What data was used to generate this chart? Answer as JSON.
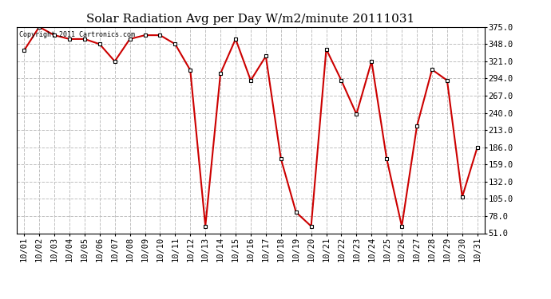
{
  "title": "Solar Radiation Avg per Day W/m2/minute 20111031",
  "copyright_text": "Copyright 2011 Cartronics.com",
  "dates": [
    "10/01",
    "10/02",
    "10/03",
    "10/04",
    "10/05",
    "10/06",
    "10/07",
    "10/08",
    "10/09",
    "10/10",
    "10/11",
    "10/12",
    "10/13",
    "10/14",
    "10/15",
    "10/16",
    "10/17",
    "10/18",
    "10/19",
    "10/20",
    "10/21",
    "10/22",
    "10/23",
    "10/24",
    "10/25",
    "10/26",
    "10/27",
    "10/28",
    "10/29",
    "10/30",
    "10/31"
  ],
  "values": [
    338,
    375,
    362,
    356,
    356,
    348,
    321,
    356,
    362,
    362,
    348,
    307,
    62,
    302,
    356,
    291,
    329,
    168,
    84,
    62,
    340,
    291,
    238,
    321,
    168,
    62,
    219,
    308,
    291,
    108,
    186
  ],
  "ylim": [
    51.0,
    375.0
  ],
  "yticks": [
    51.0,
    78.0,
    105.0,
    132.0,
    159.0,
    186.0,
    213.0,
    240.0,
    267.0,
    294.0,
    321.0,
    348.0,
    375.0
  ],
  "line_color": "#cc0000",
  "marker_color": "#000000",
  "background_color": "#ffffff",
  "grid_color": "#c0c0c0",
  "title_fontsize": 11,
  "tick_fontsize": 7.5
}
